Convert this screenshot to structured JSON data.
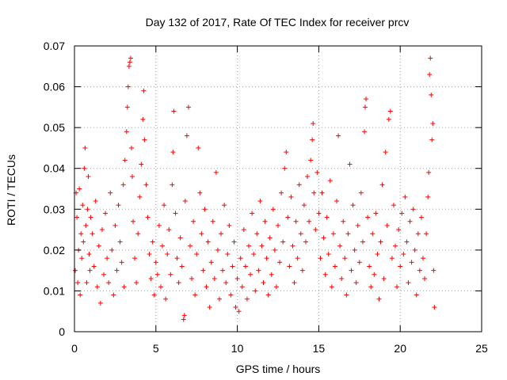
{
  "chart_data": {
    "type": "scatter",
    "title": "Day 132 of 2017, Rate Of TEC Index for receiver prcv",
    "xlabel": "GPS time / hours",
    "ylabel": "ROTI / TECUs",
    "xlim": [
      0,
      25
    ],
    "ylim": [
      0,
      0.07
    ],
    "xticks": [
      "0",
      "5",
      "10",
      "15",
      "20",
      "25"
    ],
    "yticks": [
      "0",
      "0.01",
      "0.02",
      "0.03",
      "0.04",
      "0.05",
      "0.06",
      "0.07"
    ],
    "grid": true,
    "marker": "+",
    "color": "#ff0000",
    "series": [
      {
        "points": [
          [
            0.05,
            0.015
          ],
          [
            0.1,
            0.034
          ],
          [
            0.15,
            0.028
          ],
          [
            0.2,
            0.012
          ],
          [
            0.25,
            0.02
          ],
          [
            0.3,
            0.035
          ],
          [
            0.35,
            0.009
          ],
          [
            0.4,
            0.024
          ],
          [
            0.45,
            0.018
          ],
          [
            0.5,
            0.031
          ],
          [
            0.55,
            0.022
          ],
          [
            0.6,
            0.04
          ],
          [
            0.65,
            0.045
          ],
          [
            0.7,
            0.026
          ],
          [
            0.75,
            0.012
          ],
          [
            0.8,
            0.03
          ],
          [
            0.85,
            0.038
          ],
          [
            0.9,
            0.019
          ],
          [
            0.95,
            0.015
          ],
          [
            1.0,
            0.028
          ],
          [
            1.1,
            0.024
          ],
          [
            1.2,
            0.016
          ],
          [
            1.3,
            0.032
          ],
          [
            1.4,
            0.011
          ],
          [
            1.5,
            0.021
          ],
          [
            1.6,
            0.007
          ],
          [
            1.7,
            0.025
          ],
          [
            1.8,
            0.014
          ],
          [
            1.9,
            0.029
          ],
          [
            2.0,
            0.018
          ],
          [
            2.1,
            0.012
          ],
          [
            2.2,
            0.034
          ],
          [
            2.3,
            0.02
          ],
          [
            2.4,
            0.009
          ],
          [
            2.5,
            0.026
          ],
          [
            2.6,
            0.015
          ],
          [
            2.7,
            0.031
          ],
          [
            2.8,
            0.022
          ],
          [
            2.9,
            0.017
          ],
          [
            3.0,
            0.036
          ],
          [
            3.05,
            0.011
          ],
          [
            3.1,
            0.042
          ],
          [
            3.2,
            0.049
          ],
          [
            3.25,
            0.055
          ],
          [
            3.3,
            0.06
          ],
          [
            3.35,
            0.065
          ],
          [
            3.4,
            0.066
          ],
          [
            3.45,
            0.067
          ],
          [
            3.5,
            0.045
          ],
          [
            3.55,
            0.038
          ],
          [
            3.6,
            0.027
          ],
          [
            3.7,
            0.018
          ],
          [
            3.8,
            0.012
          ],
          [
            3.9,
            0.024
          ],
          [
            4.0,
            0.033
          ],
          [
            4.1,
            0.041
          ],
          [
            4.2,
            0.052
          ],
          [
            4.25,
            0.059
          ],
          [
            4.3,
            0.047
          ],
          [
            4.4,
            0.036
          ],
          [
            4.5,
            0.028
          ],
          [
            4.6,
            0.019
          ],
          [
            4.7,
            0.013
          ],
          [
            4.8,
            0.022
          ],
          [
            4.9,
            0.009
          ],
          [
            5.0,
            0.017
          ],
          [
            5.1,
            0.014
          ],
          [
            5.2,
            0.026
          ],
          [
            5.3,
            0.011
          ],
          [
            5.4,
            0.021
          ],
          [
            5.5,
            0.031
          ],
          [
            5.6,
            0.008
          ],
          [
            5.7,
            0.019
          ],
          [
            5.8,
            0.025
          ],
          [
            5.9,
            0.014
          ],
          [
            6.0,
            0.036
          ],
          [
            6.05,
            0.044
          ],
          [
            6.1,
            0.054
          ],
          [
            6.2,
            0.029
          ],
          [
            6.3,
            0.018
          ],
          [
            6.4,
            0.012
          ],
          [
            6.5,
            0.023
          ],
          [
            6.6,
            0.016
          ],
          [
            6.7,
            0.003
          ],
          [
            6.75,
            0.004
          ],
          [
            6.8,
            0.032
          ],
          [
            6.9,
            0.048
          ],
          [
            7.0,
            0.055
          ],
          [
            7.1,
            0.021
          ],
          [
            7.2,
            0.013
          ],
          [
            7.3,
            0.027
          ],
          [
            7.4,
            0.009
          ],
          [
            7.5,
            0.019
          ],
          [
            7.6,
            0.045
          ],
          [
            7.7,
            0.034
          ],
          [
            7.8,
            0.024
          ],
          [
            7.9,
            0.015
          ],
          [
            8.0,
            0.03
          ],
          [
            8.1,
            0.011
          ],
          [
            8.2,
            0.022
          ],
          [
            8.3,
            0.006
          ],
          [
            8.4,
            0.017
          ],
          [
            8.5,
            0.027
          ],
          [
            8.6,
            0.013
          ],
          [
            8.7,
            0.039
          ],
          [
            8.8,
            0.02
          ],
          [
            8.9,
            0.008
          ],
          [
            9.0,
            0.024
          ],
          [
            9.1,
            0.015
          ],
          [
            9.2,
            0.031
          ],
          [
            9.3,
            0.012
          ],
          [
            9.4,
            0.019
          ],
          [
            9.5,
            0.026
          ],
          [
            9.6,
            0.009
          ],
          [
            9.7,
            0.016
          ],
          [
            9.8,
            0.022
          ],
          [
            9.9,
            0.006
          ],
          [
            10.0,
            0.013
          ],
          [
            10.1,
            0.005
          ],
          [
            10.2,
            0.018
          ],
          [
            10.3,
            0.011
          ],
          [
            10.4,
            0.025
          ],
          [
            10.5,
            0.016
          ],
          [
            10.6,
            0.008
          ],
          [
            10.7,
            0.021
          ],
          [
            10.8,
            0.014
          ],
          [
            10.9,
            0.029
          ],
          [
            11.0,
            0.019
          ],
          [
            11.1,
            0.01
          ],
          [
            11.2,
            0.024
          ],
          [
            11.3,
            0.015
          ],
          [
            11.4,
            0.032
          ],
          [
            11.5,
            0.021
          ],
          [
            11.6,
            0.012
          ],
          [
            11.7,
            0.027
          ],
          [
            11.8,
            0.018
          ],
          [
            11.9,
            0.009
          ],
          [
            12.0,
            0.023
          ],
          [
            12.1,
            0.014
          ],
          [
            12.2,
            0.03
          ],
          [
            12.3,
            0.02
          ],
          [
            12.4,
            0.011
          ],
          [
            12.5,
            0.026
          ],
          [
            12.6,
            0.017
          ],
          [
            12.7,
            0.034
          ],
          [
            12.8,
            0.022
          ],
          [
            12.9,
            0.04
          ],
          [
            13.0,
            0.044
          ],
          [
            13.1,
            0.028
          ],
          [
            13.2,
            0.016
          ],
          [
            13.3,
            0.033
          ],
          [
            13.4,
            0.021
          ],
          [
            13.5,
            0.012
          ],
          [
            13.6,
            0.027
          ],
          [
            13.7,
            0.018
          ],
          [
            13.8,
            0.036
          ],
          [
            13.9,
            0.024
          ],
          [
            14.0,
            0.015
          ],
          [
            14.1,
            0.031
          ],
          [
            14.2,
            0.022
          ],
          [
            14.3,
            0.038
          ],
          [
            14.4,
            0.027
          ],
          [
            14.5,
            0.042
          ],
          [
            14.6,
            0.047
          ],
          [
            14.65,
            0.051
          ],
          [
            14.7,
            0.034
          ],
          [
            14.8,
            0.025
          ],
          [
            14.9,
            0.039
          ],
          [
            15.0,
            0.029
          ],
          [
            15.1,
            0.018
          ],
          [
            15.2,
            0.034
          ],
          [
            15.3,
            0.023
          ],
          [
            15.4,
            0.014
          ],
          [
            15.5,
            0.028
          ],
          [
            15.6,
            0.019
          ],
          [
            15.7,
            0.037
          ],
          [
            15.8,
            0.011
          ],
          [
            15.9,
            0.024
          ],
          [
            16.0,
            0.016
          ],
          [
            16.1,
            0.032
          ],
          [
            16.2,
            0.048
          ],
          [
            16.3,
            0.021
          ],
          [
            16.4,
            0.013
          ],
          [
            16.5,
            0.027
          ],
          [
            16.6,
            0.018
          ],
          [
            16.7,
            0.009
          ],
          [
            16.8,
            0.024
          ],
          [
            16.9,
            0.041
          ],
          [
            17.0,
            0.015
          ],
          [
            17.1,
            0.031
          ],
          [
            17.2,
            0.02
          ],
          [
            17.3,
            0.012
          ],
          [
            17.4,
            0.026
          ],
          [
            17.5,
            0.017
          ],
          [
            17.6,
            0.034
          ],
          [
            17.7,
            0.022
          ],
          [
            17.8,
            0.049
          ],
          [
            17.85,
            0.055
          ],
          [
            17.9,
            0.057
          ],
          [
            18.0,
            0.028
          ],
          [
            18.1,
            0.016
          ],
          [
            18.2,
            0.011
          ],
          [
            18.3,
            0.024
          ],
          [
            18.4,
            0.014
          ],
          [
            18.5,
            0.029
          ],
          [
            18.6,
            0.019
          ],
          [
            18.7,
            0.008
          ],
          [
            18.8,
            0.022
          ],
          [
            18.9,
            0.036
          ],
          [
            19.0,
            0.013
          ],
          [
            19.1,
            0.044
          ],
          [
            19.2,
            0.026
          ],
          [
            19.3,
            0.052
          ],
          [
            19.4,
            0.054
          ],
          [
            19.5,
            0.018
          ],
          [
            19.6,
            0.031
          ],
          [
            19.7,
            0.021
          ],
          [
            19.8,
            0.011
          ],
          [
            19.9,
            0.025
          ],
          [
            20.0,
            0.016
          ],
          [
            20.1,
            0.029
          ],
          [
            20.2,
            0.019
          ],
          [
            20.3,
            0.033
          ],
          [
            20.4,
            0.022
          ],
          [
            20.5,
            0.012
          ],
          [
            20.6,
            0.027
          ],
          [
            20.7,
            0.017
          ],
          [
            20.8,
            0.03
          ],
          [
            20.9,
            0.02
          ],
          [
            21.0,
            0.009
          ],
          [
            21.1,
            0.024
          ],
          [
            21.2,
            0.015
          ],
          [
            21.3,
            0.028
          ],
          [
            21.4,
            0.018
          ],
          [
            21.5,
            0.013
          ],
          [
            21.6,
            0.024
          ],
          [
            21.7,
            0.033
          ],
          [
            21.75,
            0.039
          ],
          [
            21.8,
            0.063
          ],
          [
            21.85,
            0.067
          ],
          [
            21.9,
            0.058
          ],
          [
            21.95,
            0.047
          ],
          [
            22.0,
            0.051
          ],
          [
            22.05,
            0.015
          ],
          [
            22.1,
            0.006
          ]
        ]
      }
    ]
  }
}
